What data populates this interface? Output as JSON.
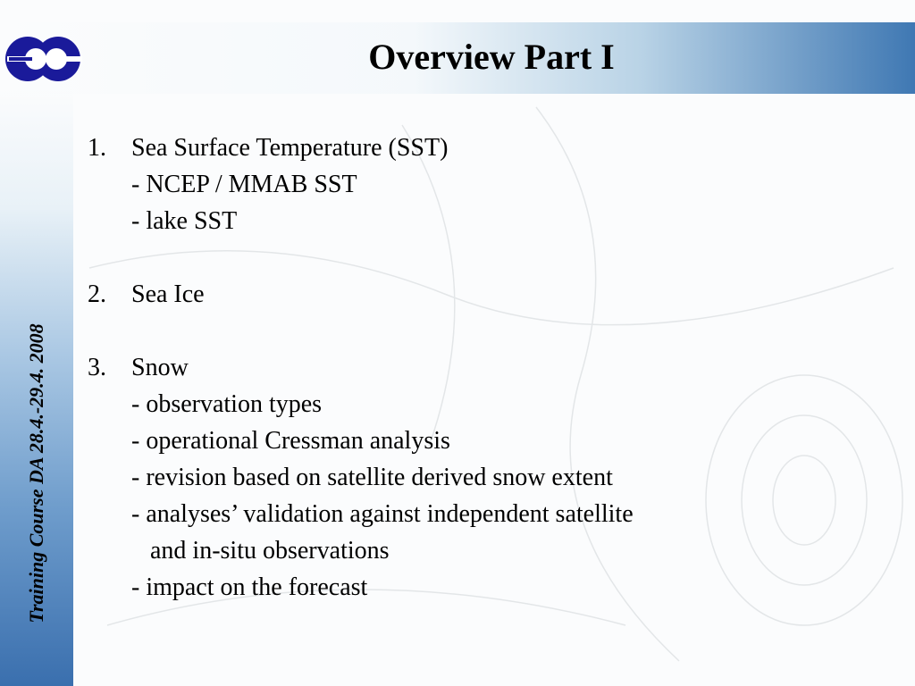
{
  "title": "Overview Part I",
  "side_text": "Training Course DA 28.4.-29.4. 2008",
  "items": [
    {
      "num": "1.",
      "label": "Sea Surface Temperature (SST)",
      "subs": [
        "- NCEP / MMAB SST",
        "- lake SST"
      ]
    },
    {
      "num": "2.",
      "label": "Sea Ice",
      "subs": []
    },
    {
      "num": "3.",
      "label": "Snow",
      "subs": [
        "- observation types",
        "- operational Cressman analysis",
        "- revision based on satellite derived snow extent",
        "- analyses’ validation against independent satellite",
        "   and in-situ observations",
        "- impact on the forecast"
      ]
    }
  ],
  "colors": {
    "logo": "#1a1a9a",
    "band": "#3a6fae"
  }
}
